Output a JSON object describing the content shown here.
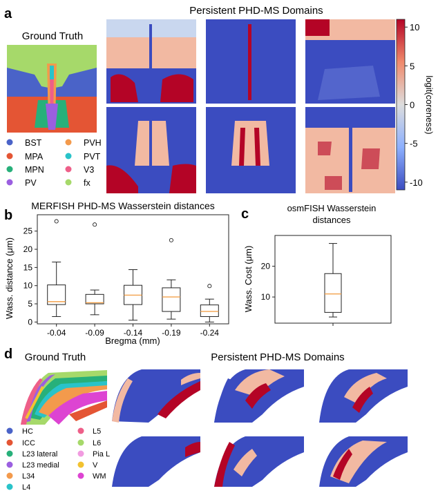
{
  "colors": {
    "domain_blue": "#3b4cc0",
    "domain_pink": "#f2b9a2",
    "domain_red": "#b40426",
    "domain_light": "#c9d7ef",
    "box_orange": "#f3a14a",
    "cbar_top": "#b40426",
    "cbar_mid": "#dddddd",
    "cbar_bottom": "#3b4cc0"
  },
  "panel_a": {
    "label": "a",
    "title": "Persistent PHD-MS Domains",
    "ground_truth_title": "Ground Truth",
    "legend": [
      {
        "label": "BST",
        "color": "#4a63c8"
      },
      {
        "label": "PVH",
        "color": "#f39a4c"
      },
      {
        "label": "MPA",
        "color": "#e45534"
      },
      {
        "label": "PVT",
        "color": "#29c3c9"
      },
      {
        "label": "MPN",
        "color": "#27b07a"
      },
      {
        "label": "V3",
        "color": "#ee5f89"
      },
      {
        "label": "PV",
        "color": "#9b5fe0"
      },
      {
        "label": "fx",
        "color": "#a6d96a"
      }
    ],
    "colorbar": {
      "label": "logit(coreness)",
      "ticks": [
        "10",
        "5",
        "0",
        "-5",
        "-10"
      ],
      "range": [
        -11,
        11
      ]
    }
  },
  "panel_b": {
    "label": "b",
    "chart_data": {
      "type": "box",
      "title": "MERFISH PHD-MS Wasserstein distances",
      "xlabel": "Bregma (mm)",
      "ylabel": "Wass. distance (μm)",
      "categories": [
        "-0.04",
        "-0.09",
        "-0.14",
        "-0.19",
        "-0.24"
      ],
      "yticks": [
        "0",
        "5",
        "10",
        "15",
        "20",
        "25"
      ],
      "ylim": [
        -0.5,
        29.5
      ],
      "boxes": [
        {
          "whislo": 1.5,
          "q1": 4.8,
          "med": 5.6,
          "q3": 10.2,
          "whishi": 16.5,
          "fliers": [
            27.7
          ]
        },
        {
          "whislo": 2.0,
          "q1": 5.0,
          "med": 5.3,
          "q3": 7.6,
          "whishi": 8.8,
          "fliers": [
            26.8
          ]
        },
        {
          "whislo": 0.5,
          "q1": 4.8,
          "med": 7.4,
          "q3": 10.1,
          "whishi": 14.4,
          "fliers": []
        },
        {
          "whislo": 0.8,
          "q1": 2.9,
          "med": 6.9,
          "q3": 9.4,
          "whishi": 11.6,
          "fliers": [
            22.5
          ]
        },
        {
          "whislo": 0.0,
          "q1": 1.5,
          "med": 2.9,
          "q3": 4.7,
          "whishi": 6.3,
          "fliers": [
            9.9
          ]
        }
      ]
    }
  },
  "panel_c": {
    "label": "c",
    "chart_data": {
      "type": "box",
      "title_line1": "osmFISH Wasserstein",
      "title_line2": "distances",
      "ylabel": "Wass. Cost (μm)",
      "yticks": [
        "10",
        "20"
      ],
      "ylim": [
        1.5,
        30
      ],
      "boxes": [
        {
          "whislo": 3.5,
          "q1": 5.0,
          "med": 11.0,
          "q3": 17.6,
          "whishi": 27.4,
          "fliers": []
        }
      ]
    }
  },
  "panel_d": {
    "label": "d",
    "title": "Persistent PHD-MS Domains",
    "ground_truth_title": "Ground Truth",
    "legend": [
      {
        "label": "HC",
        "color": "#4a63c8"
      },
      {
        "label": "L5",
        "color": "#ee5f89"
      },
      {
        "label": "ICC",
        "color": "#e45534"
      },
      {
        "label": "L6",
        "color": "#a6d96a"
      },
      {
        "label": "L23 lateral",
        "color": "#27b07a"
      },
      {
        "label": "Pia L",
        "color": "#f19be0"
      },
      {
        "label": "L23 medial",
        "color": "#9b5fe0"
      },
      {
        "label": "V",
        "color": "#f2c230"
      },
      {
        "label": "L34",
        "color": "#f39a4c"
      },
      {
        "label": "WM",
        "color": "#dd44d2"
      },
      {
        "label": "L4",
        "color": "#29c3c9"
      }
    ]
  }
}
